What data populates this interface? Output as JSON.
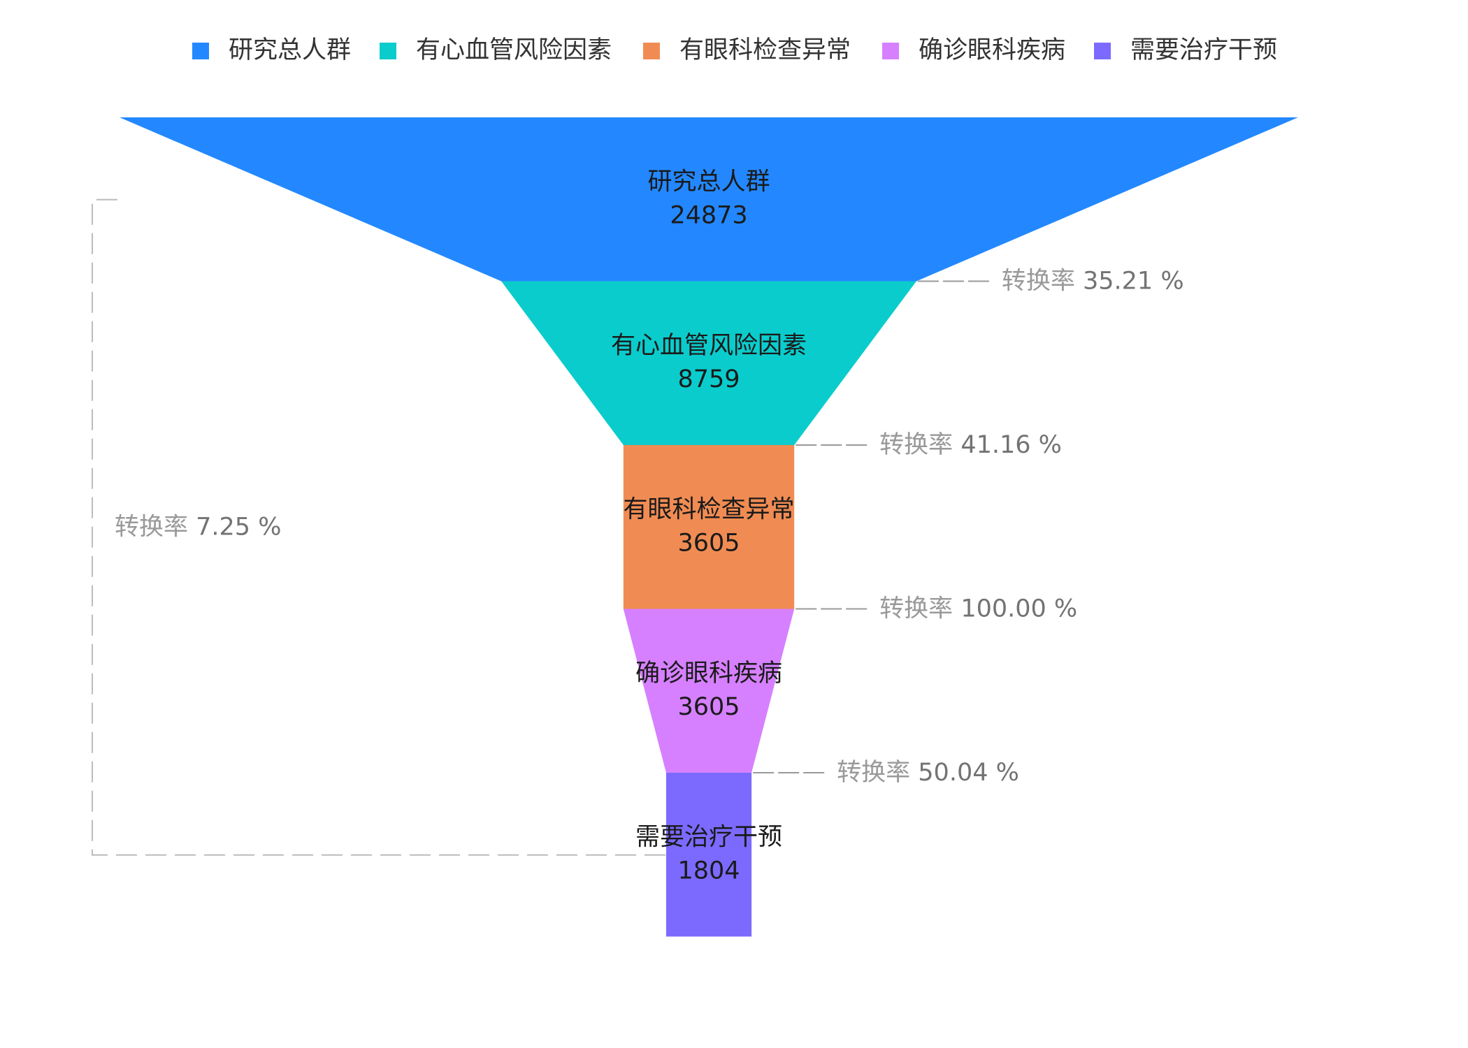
{
  "chart_data": {
    "type": "funnel",
    "stages": [
      {
        "name": "研究总人群",
        "value": 24873,
        "color": "#2388FF"
      },
      {
        "name": "有心血管风险因素",
        "value": 8759,
        "color": "#0BCCCC"
      },
      {
        "name": "有眼科检查异常",
        "value": 3605,
        "color": "#F08C53"
      },
      {
        "name": "确诊眼科疾病",
        "value": 3605,
        "color": "#D680FF"
      },
      {
        "name": "需要治疗干预",
        "value": 1804,
        "color": "#7C6AFF"
      }
    ],
    "conversion_label": "转换率",
    "conversion_rates": [
      {
        "value": "35.21",
        "unit": "%"
      },
      {
        "value": "41.16",
        "unit": "%"
      },
      {
        "value": "100.00",
        "unit": "%"
      },
      {
        "value": "50.04",
        "unit": "%"
      }
    ],
    "overall_conversion": {
      "value": "7.25",
      "unit": "%"
    },
    "legend_position": "top-center"
  }
}
